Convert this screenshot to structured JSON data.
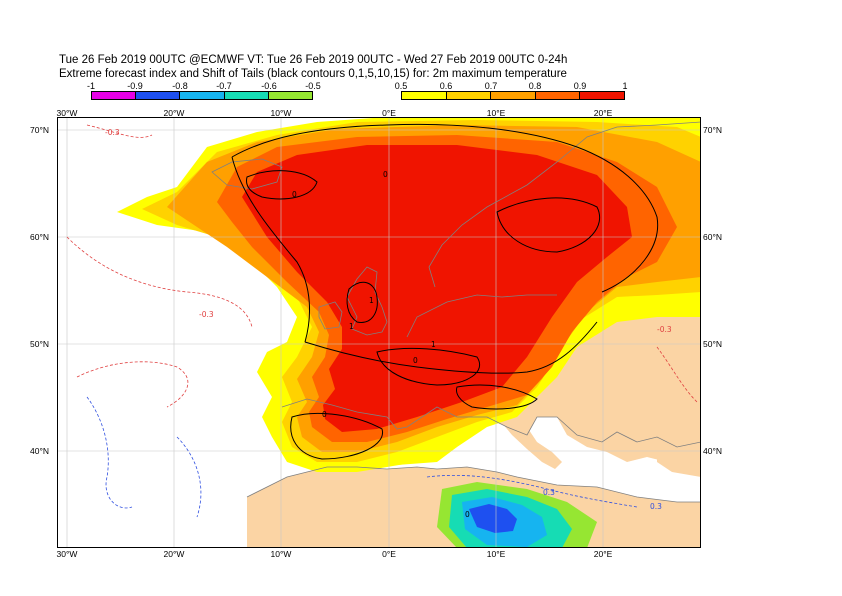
{
  "title": {
    "line1": "Tue 26 Feb 2019 00UTC @ECMWF VT: Tue 26 Feb 2019 00UTC - Wed 27 Feb 2019 00UTC  0-24h",
    "line2": "Extreme forecast index and Shift of Tails (black contours 0,1,5,10,15) for: 2m maximum temperature"
  },
  "colorbar_negative": {
    "ticks": [
      "-1",
      "-0.9",
      "-0.8",
      "-0.7",
      "-0.6",
      "-0.5"
    ],
    "colors": [
      "#e600e6",
      "#1e50f0",
      "#16b4f0",
      "#16dcb4",
      "#96e632"
    ]
  },
  "colorbar_positive": {
    "ticks": [
      "0.5",
      "0.6",
      "0.7",
      "0.8",
      "0.9",
      "1"
    ],
    "colors": [
      "#ffff00",
      "#ffd200",
      "#ffa000",
      "#ff6400",
      "#f01400"
    ]
  },
  "axes": {
    "lon_labels": [
      "30°W",
      "20°W",
      "10°W",
      "0°E",
      "10°E",
      "20°E"
    ],
    "lat_labels": [
      "70°N",
      "60°N",
      "50°N",
      "40°N"
    ]
  },
  "contour_labels": {
    "red_dashed": "-0.3",
    "blue_dashed": "0.3",
    "black": [
      "0",
      "1"
    ]
  },
  "colors": {
    "sea": "#ffffff",
    "land": "#fbd4a4",
    "coast": "#808080",
    "grid": "#c8c8c8",
    "sot_contour": "#000000",
    "red_contour": "#e04040",
    "blue_contour": "#3050e0"
  }
}
